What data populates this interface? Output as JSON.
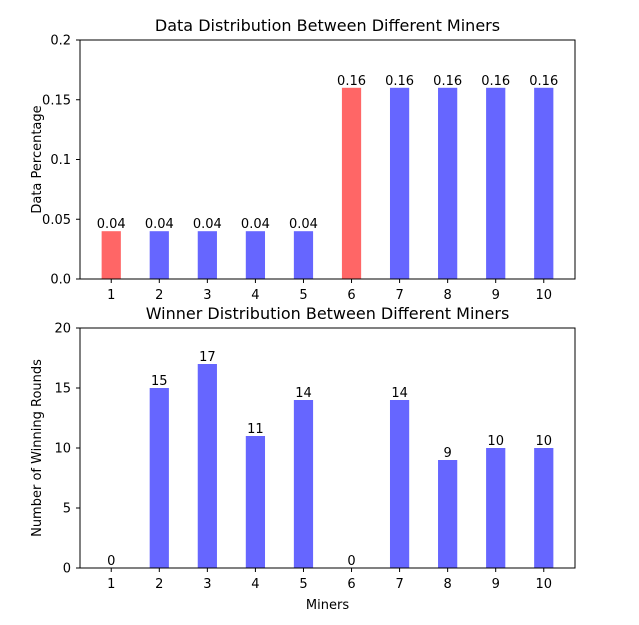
{
  "chart_data": [
    {
      "type": "bar",
      "title": "Data Distribution Between Different Miners",
      "xlabel": "",
      "ylabel": "Data Percentage",
      "categories": [
        "1",
        "2",
        "3",
        "4",
        "5",
        "6",
        "7",
        "8",
        "9",
        "10"
      ],
      "values": [
        0.04,
        0.04,
        0.04,
        0.04,
        0.04,
        0.16,
        0.16,
        0.16,
        0.16,
        0.16
      ],
      "value_labels": [
        "0.04",
        "0.04",
        "0.04",
        "0.04",
        "0.04",
        "0.16",
        "0.16",
        "0.16",
        "0.16",
        "0.16"
      ],
      "bar_colors": [
        "#ff6666",
        "#6666ff",
        "#6666ff",
        "#6666ff",
        "#6666ff",
        "#ff6666",
        "#6666ff",
        "#6666ff",
        "#6666ff",
        "#6666ff"
      ],
      "ylim": [
        0,
        0.2
      ],
      "yticks": [
        "0.0",
        "0.05",
        "0.1",
        "0.15",
        "0.2"
      ],
      "ytick_values": [
        0,
        0.05,
        0.1,
        0.15,
        0.2
      ],
      "grid": false
    },
    {
      "type": "bar",
      "title": "Winner Distribution Between Different Miners",
      "xlabel": "Miners",
      "ylabel": "Number of Winning Rounds",
      "categories": [
        "1",
        "2",
        "3",
        "4",
        "5",
        "6",
        "7",
        "8",
        "9",
        "10"
      ],
      "values": [
        0,
        15,
        17,
        11,
        14,
        0,
        14,
        9,
        10,
        10
      ],
      "value_labels": [
        "0",
        "15",
        "17",
        "11",
        "14",
        "0",
        "14",
        "9",
        "10",
        "10"
      ],
      "bar_colors": [
        "#6666ff",
        "#6666ff",
        "#6666ff",
        "#6666ff",
        "#6666ff",
        "#6666ff",
        "#6666ff",
        "#6666ff",
        "#6666ff",
        "#6666ff"
      ],
      "ylim": [
        0,
        20
      ],
      "yticks": [
        "0",
        "5",
        "10",
        "15",
        "20"
      ],
      "ytick_values": [
        0,
        5,
        10,
        15,
        20
      ],
      "grid": false
    }
  ]
}
